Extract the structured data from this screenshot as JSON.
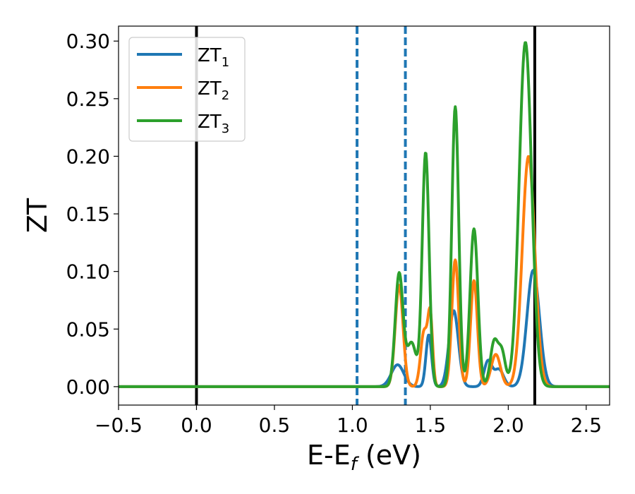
{
  "chart_data": {
    "type": "line",
    "xlabel": {
      "main": "E-E",
      "sub": "f",
      "suffix": " (eV)"
    },
    "ylabel": "ZT",
    "xlim": [
      -0.5,
      2.65
    ],
    "ylim": [
      -0.016,
      0.313
    ],
    "xticks": [
      -0.5,
      0.0,
      0.5,
      1.0,
      1.5,
      2.0,
      2.5
    ],
    "xtick_labels": [
      "−0.5",
      "0.0",
      "0.5",
      "1.0",
      "1.5",
      "2.0",
      "2.5"
    ],
    "yticks": [
      0.0,
      0.05,
      0.1,
      0.15,
      0.2,
      0.25,
      0.3
    ],
    "ytick_labels": [
      "0.00",
      "0.05",
      "0.10",
      "0.15",
      "0.20",
      "0.25",
      "0.30"
    ],
    "grid": false,
    "legend_position": "top-left",
    "vlines": [
      {
        "x": 0.0,
        "style": "solid",
        "color": "#000000"
      },
      {
        "x": 2.17,
        "style": "solid",
        "color": "#000000"
      },
      {
        "x": 1.03,
        "style": "dashed",
        "color": "#1f77b4"
      },
      {
        "x": 1.34,
        "style": "dashed",
        "color": "#1f77b4"
      }
    ],
    "series": [
      {
        "name": "ZT",
        "sub": "1",
        "color": "#1f77b4",
        "peaks": [
          {
            "x": 1.29,
            "h": 0.019,
            "w": 0.04
          },
          {
            "x": 1.49,
            "h": 0.045,
            "w": 0.018
          },
          {
            "x": 1.65,
            "h": 0.066,
            "w": 0.03
          },
          {
            "x": 1.87,
            "h": 0.022,
            "w": 0.025
          },
          {
            "x": 1.94,
            "h": 0.015,
            "w": 0.03
          },
          {
            "x": 2.16,
            "h": 0.101,
            "w": 0.04
          }
        ]
      },
      {
        "name": "ZT",
        "sub": "2",
        "color": "#ff7f0e",
        "peaks": [
          {
            "x": 1.3,
            "h": 0.088,
            "w": 0.025
          },
          {
            "x": 1.46,
            "h": 0.048,
            "w": 0.022
          },
          {
            "x": 1.5,
            "h": 0.058,
            "w": 0.015
          },
          {
            "x": 1.66,
            "h": 0.11,
            "w": 0.022
          },
          {
            "x": 1.78,
            "h": 0.092,
            "w": 0.022
          },
          {
            "x": 1.92,
            "h": 0.028,
            "w": 0.03
          },
          {
            "x": 2.13,
            "h": 0.2,
            "w": 0.04
          }
        ]
      },
      {
        "name": "ZT",
        "sub": "3",
        "color": "#2ca02c",
        "peaks": [
          {
            "x": 1.3,
            "h": 0.098,
            "w": 0.025
          },
          {
            "x": 1.38,
            "h": 0.038,
            "w": 0.03
          },
          {
            "x": 1.47,
            "h": 0.203,
            "w": 0.022
          },
          {
            "x": 1.66,
            "h": 0.243,
            "w": 0.022
          },
          {
            "x": 1.78,
            "h": 0.137,
            "w": 0.025
          },
          {
            "x": 1.91,
            "h": 0.039,
            "w": 0.025
          },
          {
            "x": 1.96,
            "h": 0.028,
            "w": 0.022
          },
          {
            "x": 2.11,
            "h": 0.299,
            "w": 0.04
          }
        ]
      }
    ]
  }
}
